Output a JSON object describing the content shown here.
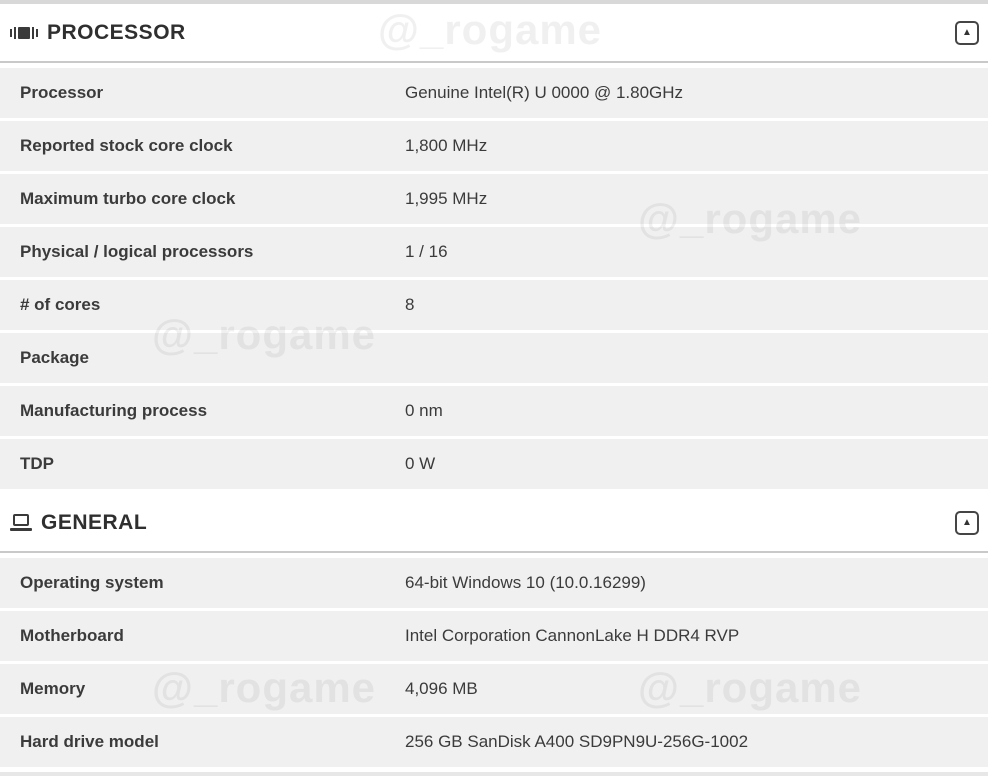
{
  "watermark": {
    "text": "@_rogame"
  },
  "colors": {
    "row_bg": "#f0f0f0",
    "text": "#3b3b3b",
    "header_border": "#c9c9c9",
    "watermark": "#e6e6e6"
  },
  "collapse_button": {
    "glyph": "▲"
  },
  "sections": [
    {
      "id": "processor",
      "title": "PROCESSOR",
      "icon": "cpu-icon",
      "rows": [
        {
          "label": "Processor",
          "value": "Genuine Intel(R) U 0000 @ 1.80GHz"
        },
        {
          "label": "Reported stock core clock",
          "value": "1,800 MHz"
        },
        {
          "label": "Maximum turbo core clock",
          "value": "1,995 MHz"
        },
        {
          "label": "Physical / logical processors",
          "value": "1 / 16"
        },
        {
          "label": "# of cores",
          "value": "8"
        },
        {
          "label": "Package",
          "value": ""
        },
        {
          "label": "Manufacturing process",
          "value": "0 nm"
        },
        {
          "label": "TDP",
          "value": "0 W"
        }
      ]
    },
    {
      "id": "general",
      "title": "GENERAL",
      "icon": "laptop-icon",
      "rows": [
        {
          "label": "Operating system",
          "value": "64-bit Windows 10 (10.0.16299)"
        },
        {
          "label": "Motherboard",
          "value": "Intel Corporation CannonLake H DDR4 RVP"
        },
        {
          "label": "Memory",
          "value": "4,096 MB"
        },
        {
          "label": "Hard drive model",
          "value": "256 GB SanDisk A400 SD9PN9U-256G-1002"
        }
      ]
    }
  ]
}
